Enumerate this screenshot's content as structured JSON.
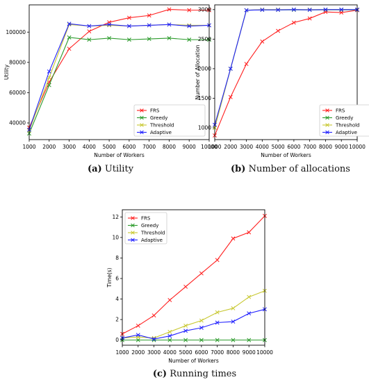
{
  "captions": [
    {
      "letter": "(a)",
      "text": "Utility"
    },
    {
      "letter": "(b)",
      "text": "Number of allocations"
    },
    {
      "letter": "(c)",
      "text": "Running times"
    }
  ],
  "chart_data": [
    {
      "type": "line",
      "xlabel": "Number of Workers",
      "ylabel": "Utility",
      "x": [
        1000,
        2000,
        3000,
        4000,
        5000,
        6000,
        7000,
        8000,
        9000,
        10000
      ],
      "xlim": [
        1000,
        10000
      ],
      "ylim": [
        29000,
        118000
      ],
      "yticks": [
        40000,
        60000,
        80000,
        100000
      ],
      "legend": "bottom-right",
      "series": [
        {
          "name": "FRS",
          "color": "#ff2020",
          "values": [
            37000,
            67000,
            89000,
            100500,
            106500,
            109500,
            111000,
            115000,
            114500,
            114500
          ]
        },
        {
          "name": "Greedy",
          "color": "#2a9a2a",
          "values": [
            33000,
            65000,
            96500,
            95000,
            96000,
            95000,
            95500,
            96000,
            95000,
            95000
          ]
        },
        {
          "name": "Threshold",
          "color": "#c8c832",
          "values": [
            35000,
            70000,
            105000,
            104000,
            104500,
            104000,
            104500,
            105000,
            104500,
            104500
          ]
        },
        {
          "name": "Adaptive",
          "color": "#2020ff",
          "values": [
            35500,
            74000,
            105500,
            104000,
            105000,
            104000,
            104500,
            105000,
            104000,
            104500
          ]
        }
      ]
    },
    {
      "type": "line",
      "xlabel": "Number of Workers",
      "ylabel": "Number of Allocation",
      "x": [
        1000,
        2000,
        3000,
        4000,
        5000,
        6000,
        7000,
        8000,
        9000,
        10000
      ],
      "xlim": [
        1000,
        10000
      ],
      "ylim": [
        800,
        3080
      ],
      "yticks": [
        1000,
        1500,
        2000,
        2500,
        3000
      ],
      "legend": "bottom-right",
      "series": [
        {
          "name": "FRS",
          "color": "#ff2020",
          "values": [
            870,
            1520,
            2080,
            2460,
            2640,
            2780,
            2850,
            2960,
            2950,
            2990
          ]
        },
        {
          "name": "Greedy",
          "color": "#2a9a2a",
          "values": [
            1000,
            2000,
            2990,
            2995,
            2995,
            2995,
            2995,
            2995,
            2995,
            2995
          ]
        },
        {
          "name": "Threshold",
          "color": "#c8c832",
          "values": [
            1000,
            2000,
            2990,
            3000,
            3000,
            3000,
            3000,
            3000,
            3000,
            3000
          ]
        },
        {
          "name": "Adaptive",
          "color": "#2020ff",
          "values": [
            1050,
            2000,
            2990,
            2995,
            2995,
            3000,
            2995,
            3000,
            3000,
            3000
          ]
        }
      ]
    },
    {
      "type": "line",
      "xlabel": "Number of Workers",
      "ylabel": "Time(s)",
      "x": [
        1000,
        2000,
        3000,
        4000,
        5000,
        6000,
        7000,
        8000,
        9000,
        10000
      ],
      "xlim": [
        1000,
        10000
      ],
      "ylim": [
        -0.5,
        12.7
      ],
      "yticks": [
        0,
        2,
        4,
        6,
        8,
        10,
        12
      ],
      "legend": "top-left",
      "series": [
        {
          "name": "FRS",
          "color": "#ff2020",
          "values": [
            0.6,
            1.4,
            2.4,
            3.9,
            5.2,
            6.5,
            7.8,
            9.9,
            10.5,
            12.1
          ]
        },
        {
          "name": "Greedy",
          "color": "#2a9a2a",
          "values": [
            0.0,
            0.0,
            0.0,
            0.0,
            0.0,
            0.0,
            0.0,
            0.0,
            0.0,
            0.0
          ]
        },
        {
          "name": "Threshold",
          "color": "#c8c832",
          "values": [
            0.2,
            0.3,
            0.2,
            0.8,
            1.4,
            1.9,
            2.7,
            3.1,
            4.2,
            4.8
          ]
        },
        {
          "name": "Adaptive",
          "color": "#2020ff",
          "values": [
            0.2,
            0.5,
            0.1,
            0.4,
            0.9,
            1.2,
            1.7,
            1.8,
            2.6,
            3.0
          ]
        }
      ]
    }
  ]
}
